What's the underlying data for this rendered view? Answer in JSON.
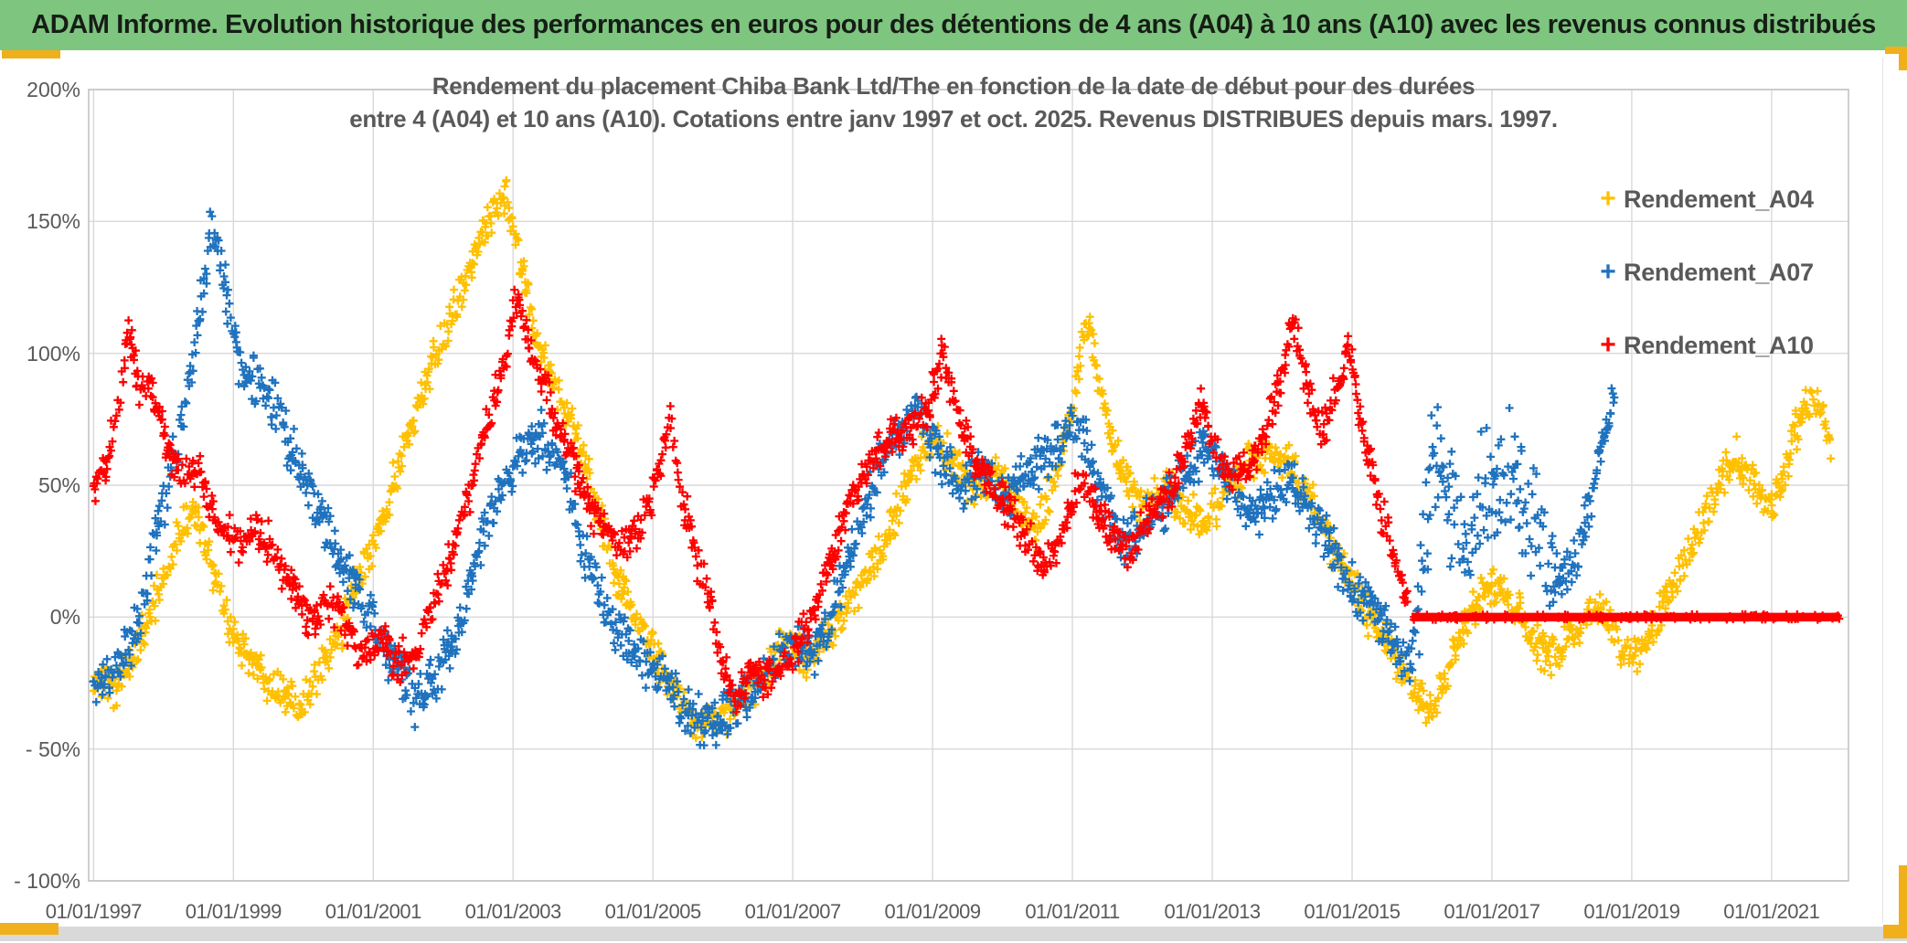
{
  "banner": {
    "text": "ADAM Informe. Evolution historique des performances en euros pour des détentions de 4 ans (A04) à 10 ans (A10) avec les revenus connus distribués",
    "bg_color": "#7EC57F",
    "accent_color": "#F0B01C"
  },
  "chart": {
    "title_line1": "Rendement du placement Chiba Bank Ltd/The en fonction de la date de début pour des durées",
    "title_line2": "entre 4 (A04) et 10 ans (A10). Cotations entre janv 1997 et oct. 2025. Revenus DISTRIBUES depuis mars. 1997.",
    "title_color": "#595959",
    "grid_color": "#D9D9D9",
    "border_color": "#C3C3C3"
  },
  "chart_data": {
    "type": "scatter",
    "title": "Rendement du placement Chiba Bank Ltd/The en fonction de la date de début pour des durées entre 4 (A04) et 10 ans (A10). Cotations entre janv 1997 et oct. 2025. Revenus DISTRIBUES depuis mars. 1997.",
    "xlabel": "",
    "ylabel": "",
    "units": "percent",
    "grid": true,
    "legend_position": "right",
    "marker": "plus",
    "x_range": [
      1996.93,
      2022.1
    ],
    "y_range": [
      -100,
      200
    ],
    "x_tick_years": [
      1997,
      1999,
      2001,
      2003,
      2005,
      2007,
      2009,
      2011,
      2013,
      2015,
      2017,
      2019,
      2021
    ],
    "x_tick_labels": [
      "01/01/1997",
      "01/01/1999",
      "01/01/2001",
      "01/01/2003",
      "01/01/2005",
      "01/01/2007",
      "01/01/2009",
      "01/01/2011",
      "01/01/2013",
      "01/01/2015",
      "01/01/2017",
      "01/01/2019",
      "01/01/2021"
    ],
    "y_tick_values": [
      200,
      150,
      100,
      50,
      0,
      -50,
      -100
    ],
    "y_tick_labels": [
      "200%",
      "150%",
      "100%",
      "50%",
      "0%",
      "- 50%",
      "- 100%"
    ],
    "series": [
      {
        "name": "Rendement_A04",
        "color": "#FFC000",
        "seed": 9,
        "noise": 9,
        "anchors": [
          [
            1997.0,
            -22
          ],
          [
            1997.3,
            -27
          ],
          [
            1997.6,
            -12
          ],
          [
            1997.9,
            8
          ],
          [
            1998.2,
            30
          ],
          [
            1998.45,
            42
          ],
          [
            1998.7,
            18
          ],
          [
            1999.0,
            -8
          ],
          [
            1999.3,
            -18
          ],
          [
            1999.6,
            -28
          ],
          [
            1999.9,
            -34
          ],
          [
            2000.2,
            -22
          ],
          [
            2000.5,
            -8
          ],
          [
            2000.8,
            15
          ],
          [
            2001.1,
            35
          ],
          [
            2001.4,
            60
          ],
          [
            2001.7,
            85
          ],
          [
            2002.0,
            105
          ],
          [
            2002.3,
            125
          ],
          [
            2002.6,
            148
          ],
          [
            2002.9,
            160
          ],
          [
            2003.1,
            135
          ],
          [
            2003.3,
            110
          ],
          [
            2003.6,
            88
          ],
          [
            2003.9,
            70
          ],
          [
            2004.2,
            40
          ],
          [
            2004.5,
            15
          ],
          [
            2004.8,
            -5
          ],
          [
            2005.1,
            -18
          ],
          [
            2005.4,
            -32
          ],
          [
            2005.7,
            -42
          ],
          [
            2006.0,
            -38
          ],
          [
            2006.3,
            -30
          ],
          [
            2006.6,
            -22
          ],
          [
            2006.9,
            -10
          ],
          [
            2007.2,
            -16
          ],
          [
            2007.5,
            -6
          ],
          [
            2007.8,
            6
          ],
          [
            2008.1,
            18
          ],
          [
            2008.4,
            35
          ],
          [
            2008.7,
            55
          ],
          [
            2009.0,
            68
          ],
          [
            2009.3,
            58
          ],
          [
            2009.6,
            48
          ],
          [
            2009.9,
            56
          ],
          [
            2010.2,
            42
          ],
          [
            2010.5,
            34
          ],
          [
            2010.8,
            58
          ],
          [
            2011.05,
            85
          ],
          [
            2011.2,
            115
          ],
          [
            2011.4,
            85
          ],
          [
            2011.7,
            55
          ],
          [
            2012.0,
            42
          ],
          [
            2012.3,
            52
          ],
          [
            2012.6,
            42
          ],
          [
            2012.9,
            35
          ],
          [
            2013.2,
            48
          ],
          [
            2013.5,
            58
          ],
          [
            2013.8,
            64
          ],
          [
            2014.1,
            58
          ],
          [
            2014.4,
            45
          ],
          [
            2014.7,
            28
          ],
          [
            2015.0,
            12
          ],
          [
            2015.3,
            -2
          ],
          [
            2015.6,
            -14
          ],
          [
            2015.9,
            -28
          ],
          [
            2016.15,
            -36
          ],
          [
            2016.4,
            -18
          ],
          [
            2016.7,
            2
          ],
          [
            2017.0,
            14
          ],
          [
            2017.3,
            4
          ],
          [
            2017.6,
            -10
          ],
          [
            2017.9,
            -16
          ],
          [
            2018.2,
            -4
          ],
          [
            2018.5,
            6
          ],
          [
            2018.8,
            -10
          ],
          [
            2019.05,
            -16
          ],
          [
            2019.3,
            -4
          ],
          [
            2019.6,
            12
          ],
          [
            2019.9,
            28
          ],
          [
            2020.2,
            48
          ],
          [
            2020.5,
            62
          ],
          [
            2020.8,
            48
          ],
          [
            2021.0,
            42
          ],
          [
            2021.2,
            58
          ],
          [
            2021.45,
            78
          ],
          [
            2021.65,
            82
          ],
          [
            2021.85,
            65
          ]
        ]
      },
      {
        "name": "Rendement_A07",
        "color": "#1F72BE",
        "seed": 17,
        "noise": 11,
        "noise_boost": {
          "from": 2015.95,
          "to": 2017.9,
          "amp": 18
        },
        "anchors": [
          [
            1997.0,
            -25
          ],
          [
            1997.3,
            -20
          ],
          [
            1997.6,
            -5
          ],
          [
            1997.85,
            25
          ],
          [
            1998.1,
            55
          ],
          [
            1998.35,
            85
          ],
          [
            1998.55,
            120
          ],
          [
            1998.7,
            150
          ],
          [
            1998.85,
            130
          ],
          [
            1999.1,
            95
          ],
          [
            1999.35,
            88
          ],
          [
            1999.6,
            80
          ],
          [
            1999.85,
            62
          ],
          [
            2000.1,
            48
          ],
          [
            2000.4,
            30
          ],
          [
            2000.7,
            12
          ],
          [
            2001.0,
            -2
          ],
          [
            2001.3,
            -18
          ],
          [
            2001.6,
            -32
          ],
          [
            2001.9,
            -22
          ],
          [
            2002.2,
            -8
          ],
          [
            2002.5,
            25
          ],
          [
            2002.8,
            48
          ],
          [
            2003.1,
            62
          ],
          [
            2003.4,
            68
          ],
          [
            2003.7,
            60
          ],
          [
            2004.0,
            25
          ],
          [
            2004.3,
            5
          ],
          [
            2004.6,
            -10
          ],
          [
            2004.9,
            -18
          ],
          [
            2005.2,
            -25
          ],
          [
            2005.5,
            -35
          ],
          [
            2005.8,
            -42
          ],
          [
            2006.1,
            -35
          ],
          [
            2006.4,
            -28
          ],
          [
            2006.7,
            -18
          ],
          [
            2007.0,
            -8
          ],
          [
            2007.3,
            -14
          ],
          [
            2007.6,
            5
          ],
          [
            2007.9,
            30
          ],
          [
            2008.2,
            55
          ],
          [
            2008.5,
            70
          ],
          [
            2008.8,
            78
          ],
          [
            2009.1,
            60
          ],
          [
            2009.4,
            48
          ],
          [
            2009.7,
            58
          ],
          [
            2010.0,
            45
          ],
          [
            2010.3,
            52
          ],
          [
            2010.6,
            60
          ],
          [
            2010.9,
            68
          ],
          [
            2011.1,
            72
          ],
          [
            2011.4,
            48
          ],
          [
            2011.7,
            28
          ],
          [
            2012.0,
            35
          ],
          [
            2012.3,
            42
          ],
          [
            2012.6,
            55
          ],
          [
            2012.9,
            65
          ],
          [
            2013.2,
            52
          ],
          [
            2013.5,
            38
          ],
          [
            2013.8,
            45
          ],
          [
            2014.1,
            52
          ],
          [
            2014.4,
            42
          ],
          [
            2014.7,
            25
          ],
          [
            2015.0,
            12
          ],
          [
            2015.3,
            2
          ],
          [
            2015.6,
            -8
          ],
          [
            2015.85,
            -18
          ],
          [
            2016.05,
            30
          ],
          [
            2016.2,
            65
          ],
          [
            2016.4,
            45
          ],
          [
            2016.6,
            25
          ],
          [
            2016.8,
            40
          ],
          [
            2017.0,
            48
          ],
          [
            2017.25,
            55
          ],
          [
            2017.5,
            42
          ],
          [
            2017.75,
            28
          ],
          [
            2018.0,
            12
          ],
          [
            2018.25,
            25
          ],
          [
            2018.45,
            48
          ],
          [
            2018.6,
            70
          ],
          [
            2018.75,
            85
          ]
        ]
      },
      {
        "name": "Rendement_A10",
        "color": "#FF0000",
        "seed": 5,
        "noise": 9,
        "flat_segment": {
          "from": 2015.85,
          "to": 2021.98,
          "value": 0
        },
        "anchors": [
          [
            1997.0,
            50
          ],
          [
            1997.2,
            60
          ],
          [
            1997.35,
            80
          ],
          [
            1997.5,
            112
          ],
          [
            1997.65,
            85
          ],
          [
            1997.8,
            90
          ],
          [
            1997.95,
            75
          ],
          [
            1998.1,
            60
          ],
          [
            1998.3,
            52
          ],
          [
            1998.5,
            58
          ],
          [
            1998.7,
            40
          ],
          [
            1998.9,
            32
          ],
          [
            1999.1,
            25
          ],
          [
            1999.3,
            35
          ],
          [
            1999.5,
            28
          ],
          [
            1999.7,
            18
          ],
          [
            1999.9,
            10
          ],
          [
            2000.1,
            -2
          ],
          [
            2000.35,
            8
          ],
          [
            2000.6,
            -5
          ],
          [
            2000.85,
            -15
          ],
          [
            2001.1,
            -8
          ],
          [
            2001.35,
            -18
          ],
          [
            2001.6,
            -12
          ],
          [
            2001.85,
            5
          ],
          [
            2002.1,
            22
          ],
          [
            2002.35,
            45
          ],
          [
            2002.6,
            70
          ],
          [
            2002.85,
            95
          ],
          [
            2003.05,
            122
          ],
          [
            2003.25,
            100
          ],
          [
            2003.45,
            88
          ],
          [
            2003.65,
            72
          ],
          [
            2003.85,
            58
          ],
          [
            2004.1,
            42
          ],
          [
            2004.35,
            32
          ],
          [
            2004.6,
            28
          ],
          [
            2004.85,
            35
          ],
          [
            2005.1,
            55
          ],
          [
            2005.25,
            78
          ],
          [
            2005.4,
            48
          ],
          [
            2005.6,
            25
          ],
          [
            2005.8,
            8
          ],
          [
            2006.0,
            -18
          ],
          [
            2006.2,
            -30
          ],
          [
            2006.45,
            -20
          ],
          [
            2006.7,
            -25
          ],
          [
            2006.95,
            -15
          ],
          [
            2007.2,
            -5
          ],
          [
            2007.45,
            15
          ],
          [
            2007.7,
            35
          ],
          [
            2007.95,
            52
          ],
          [
            2008.2,
            62
          ],
          [
            2008.45,
            70
          ],
          [
            2008.7,
            72
          ],
          [
            2008.95,
            80
          ],
          [
            2009.15,
            100
          ],
          [
            2009.35,
            75
          ],
          [
            2009.6,
            60
          ],
          [
            2009.85,
            48
          ],
          [
            2010.1,
            42
          ],
          [
            2010.35,
            30
          ],
          [
            2010.6,
            18
          ],
          [
            2010.85,
            32
          ],
          [
            2011.1,
            52
          ],
          [
            2011.35,
            42
          ],
          [
            2011.6,
            30
          ],
          [
            2011.85,
            25
          ],
          [
            2012.1,
            38
          ],
          [
            2012.35,
            45
          ],
          [
            2012.6,
            62
          ],
          [
            2012.85,
            80
          ],
          [
            2013.05,
            62
          ],
          [
            2013.3,
            52
          ],
          [
            2013.55,
            58
          ],
          [
            2013.8,
            72
          ],
          [
            2014.0,
            95
          ],
          [
            2014.15,
            112
          ],
          [
            2014.35,
            88
          ],
          [
            2014.55,
            68
          ],
          [
            2014.75,
            85
          ],
          [
            2014.95,
            102
          ],
          [
            2015.15,
            72
          ],
          [
            2015.35,
            48
          ],
          [
            2015.55,
            28
          ],
          [
            2015.7,
            12
          ],
          [
            2015.8,
            3
          ]
        ]
      }
    ]
  }
}
